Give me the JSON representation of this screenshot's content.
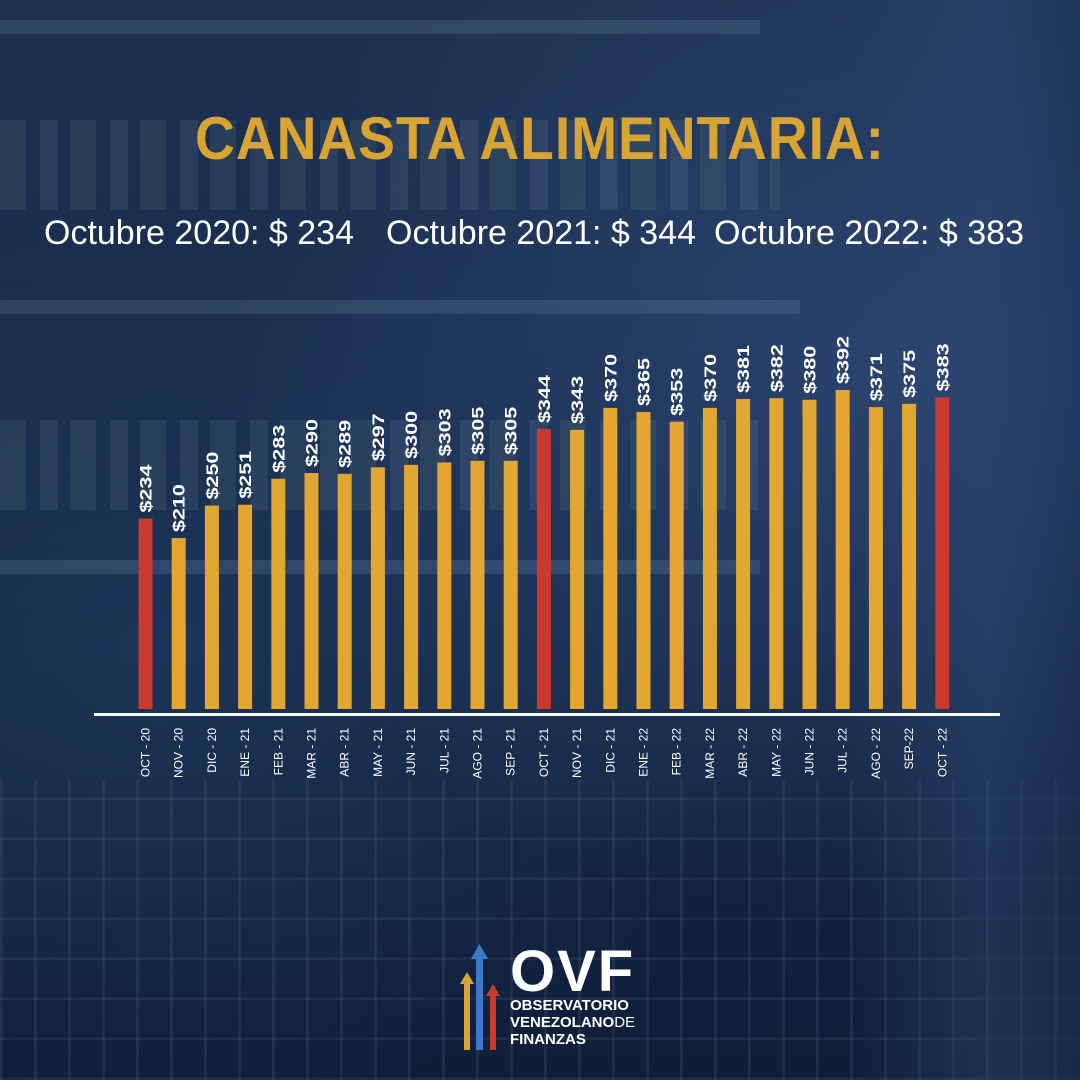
{
  "title": "CANASTA ALIMENTARIA:",
  "subtitles": [
    "Octubre 2020: $ 234",
    "Octubre 2021: $ 344",
    "Octubre 2022: $ 383"
  ],
  "colors": {
    "title": "#d8a534",
    "bar": "#e3a633",
    "highlight": "#c9392c",
    "axis": "#ffffff"
  },
  "chart_data": {
    "type": "bar",
    "categories": [
      "OCT - 20",
      "NOV - 20",
      "DIC - 20",
      "ENE - 21",
      "FEB - 21",
      "MAR - 21",
      "ABR - 21",
      "MAY - 21",
      "JUN - 21",
      "JUL - 21",
      "AGO - 21",
      "SEP - 21",
      "OCT - 21",
      "NOV - 21",
      "DIC - 21",
      "ENE - 22",
      "FEB - 22",
      "MAR - 22",
      "ABR - 22",
      "MAY - 22",
      "JUN - 22",
      "JUL - 22",
      "AGO - 22",
      "SEP-22",
      "OCT - 22"
    ],
    "values": [
      234,
      210,
      250,
      251,
      283,
      290,
      289,
      297,
      300,
      303,
      305,
      305,
      344,
      343,
      370,
      365,
      353,
      370,
      381,
      382,
      380,
      392,
      371,
      375,
      383
    ],
    "data_labels": [
      "$234",
      "$210",
      "$250",
      "$251",
      "$283",
      "$290",
      "$289",
      "$297",
      "$300",
      "$303",
      "$305",
      "$305",
      "$344",
      "$343",
      "$370",
      "$365",
      "$353",
      "$370",
      "$381",
      "$382",
      "$380",
      "$392",
      "$371",
      "$375",
      "$383"
    ],
    "highlighted": [
      0,
      12,
      24
    ],
    "ylim": [
      0,
      392
    ]
  },
  "logo": {
    "name": "OVF",
    "line1": "OBSERVATORIO",
    "line2a": "VENEZOLANO",
    "line2b": "DE",
    "line3": "FINANZAS"
  }
}
